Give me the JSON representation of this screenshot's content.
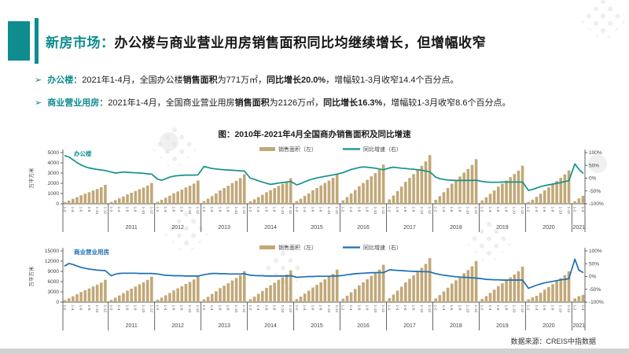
{
  "colors": {
    "accent": "#0e8c8e",
    "bar": "#c1a878",
    "office_line": "#13918b",
    "commercial_line": "#1e6fb5",
    "axis": "#555555",
    "tick_text": "#404040"
  },
  "header": {
    "title_prefix": "新房市场：",
    "title_main": "办公楼与商业营业用房销售面积同比均继续增长，但增幅收窄"
  },
  "bullets": [
    {
      "arrow": "➢",
      "segments": [
        {
          "t": "办公楼：",
          "b": true,
          "accent": true
        },
        {
          "t": "2021年1-4月，全国办公楼",
          "b": false
        },
        {
          "t": "销售面积",
          "b": true
        },
        {
          "t": "为771万㎡，",
          "b": false
        },
        {
          "t": "同比增长20.0%",
          "b": true
        },
        {
          "t": "，增幅较1-3月收窄14.4个百分点。",
          "b": false
        }
      ]
    },
    {
      "arrow": "➢",
      "segments": [
        {
          "t": "商业营业用房：",
          "b": true,
          "accent": true
        },
        {
          "t": "2021年1-4月，全国商业营业用房",
          "b": false
        },
        {
          "t": "销售面积",
          "b": true
        },
        {
          "t": "为2126万㎡，",
          "b": false
        },
        {
          "t": "同比增长16.3%",
          "b": true
        },
        {
          "t": "，增幅较1-3月收窄8.6个百分点。",
          "b": false
        }
      ]
    }
  ],
  "figure_title": "图：2010年-2021年4月全国商办销售面积及同比增速",
  "source": "数据来源：CREIS中指数据",
  "chart_data": [
    {
      "type": "bar+line",
      "name": "办公楼",
      "name_color": "#13918b",
      "line_color": "#13918b",
      "ylabel": "万平方米",
      "legend": [
        "销售面积（左）",
        "同比增速（右）"
      ],
      "legend_position": "top-center",
      "grid": false,
      "left_max": 5000,
      "left_ticks": [
        0,
        1000,
        2000,
        3000,
        4000,
        5000
      ],
      "right_min": -100,
      "right_max": 100,
      "right_ticks": [
        {
          "v": 100,
          "label": "100%"
        },
        {
          "v": 50,
          "label": "50%"
        },
        {
          "v": 0,
          "label": "0%"
        },
        {
          "v": -50,
          "label": "-50%"
        },
        {
          "v": -100,
          "label": "-100%"
        }
      ],
      "x_tick_template": [
        "1-2",
        "1-4",
        "1-6",
        "1-8",
        "1-10",
        "1-12"
      ],
      "years": [
        {
          "label": "",
          "bars": [
            170,
            310,
            480,
            650,
            830,
            980,
            1130,
            1300,
            1440,
            1610,
            1850
          ],
          "yoy": [
            88,
            83,
            72,
            61,
            52,
            45,
            40,
            37,
            34,
            32,
            30
          ]
        },
        {
          "label": "2011",
          "bars": [
            180,
            350,
            530,
            710,
            910,
            1080,
            1240,
            1420,
            1580,
            1770,
            2030
          ],
          "yoy": [
            24,
            20,
            22,
            24,
            23,
            22,
            21,
            20,
            19,
            17,
            16
          ]
        },
        {
          "label": "2012",
          "bars": [
            200,
            390,
            590,
            790,
            1020,
            1200,
            1380,
            1590,
            1770,
            1970,
            2270
          ],
          "yoy": [
            -4,
            -8,
            -2,
            4,
            8,
            10,
            11,
            12,
            12,
            12,
            13
          ]
        },
        {
          "label": "2013",
          "bars": [
            260,
            490,
            750,
            1010,
            1300,
            1530,
            1760,
            2020,
            2250,
            2510,
            2880
          ],
          "yoy": [
            46,
            42,
            38,
            36,
            34,
            33,
            32,
            31,
            30,
            29,
            28
          ]
        },
        {
          "label": "2014",
          "bars": [
            230,
            430,
            650,
            880,
            1130,
            1330,
            1530,
            1750,
            1950,
            2180,
            2500
          ],
          "yoy": [
            0,
            -5,
            -10,
            -15,
            -20,
            -24,
            -22,
            -19,
            -17,
            -15,
            -13
          ]
        },
        {
          "label": "2015",
          "bars": [
            260,
            490,
            760,
            1020,
            1310,
            1540,
            1780,
            2040,
            2270,
            2530,
            2910
          ],
          "yoy": [
            -26,
            -21,
            -14,
            -8,
            -3,
            1,
            4,
            7,
            10,
            13,
            16
          ]
        },
        {
          "label": "2016",
          "bars": [
            340,
            650,
            1000,
            1340,
            1720,
            2030,
            2340,
            2680,
            2990,
            3330,
            3830
          ],
          "yoy": [
            22,
            28,
            34,
            38,
            42,
            44,
            43,
            41,
            39,
            36,
            33
          ]
        },
        {
          "label": "2017",
          "bars": [
            430,
            810,
            1240,
            1670,
            2140,
            2520,
            2900,
            3330,
            3710,
            4140,
            4760
          ],
          "yoy": [
            40,
            43,
            41,
            39,
            38,
            36,
            35,
            33,
            31,
            28,
            25
          ]
        },
        {
          "label": "2018",
          "bars": [
            390,
            740,
            1130,
            1530,
            1960,
            2310,
            2660,
            3050,
            3400,
            3790,
            4360
          ],
          "yoy": [
            4,
            -2,
            -5,
            -7,
            -8,
            -9,
            -9,
            -9,
            -9,
            -9,
            -8
          ]
        },
        {
          "label": "2019",
          "bars": [
            330,
            630,
            970,
            1300,
            1670,
            1970,
            2270,
            2600,
            2900,
            3240,
            3720
          ],
          "yoy": [
            -13,
            -15,
            -16,
            -16,
            -16,
            -15,
            -15,
            -15,
            -15,
            -15,
            -15
          ]
        },
        {
          "label": "2020",
          "bars": [
            180,
            400,
            680,
            980,
            1310,
            1600,
            1900,
            2230,
            2540,
            2870,
            3260
          ],
          "yoy": [
            -48,
            -44,
            -38,
            -33,
            -29,
            -26,
            -23,
            -20,
            -17,
            -13,
            -10
          ]
        },
        {
          "label": "2021",
          "bars": [
            250,
            520,
            771
          ],
          "yoy": [
            56,
            34.4,
            20
          ]
        }
      ]
    },
    {
      "type": "bar+line",
      "name": "商业营业用房",
      "name_color": "#1e6fb5",
      "line_color": "#1e6fb5",
      "ylabel": "万平方米",
      "legend": [
        "销售面积（左）",
        "同比增速（右）"
      ],
      "legend_position": "top-center",
      "grid": false,
      "left_max": 15000,
      "left_ticks": [
        0,
        3000,
        6000,
        9000,
        12000,
        15000
      ],
      "right_min": -100,
      "right_max": 100,
      "right_ticks": [
        {
          "v": 100,
          "label": "100%"
        },
        {
          "v": 50,
          "label": "50%"
        },
        {
          "v": 0,
          "label": "0%"
        },
        {
          "v": -50,
          "label": "-50%"
        },
        {
          "v": -100,
          "label": "-100%"
        }
      ],
      "x_tick_template": [
        "1-2",
        "1-4",
        "1-6",
        "1-8",
        "1-10",
        "1-12"
      ],
      "years": [
        {
          "label": "",
          "bars": [
            590,
            1110,
            1700,
            2290,
            2950,
            3470,
            4000,
            4590,
            5110,
            5700,
            6550
          ],
          "yoy": [
            42,
            51,
            47,
            41,
            36,
            32,
            29,
            27,
            25,
            24,
            23
          ]
        },
        {
          "label": "2011",
          "bars": [
            670,
            1270,
            1940,
            2610,
            3350,
            3950,
            4540,
            5220,
            5810,
            6480,
            7450
          ],
          "yoy": [
            3,
            9,
            12,
            13,
            13,
            13,
            13,
            12,
            12,
            12,
            12
          ]
        },
        {
          "label": "2012",
          "bars": [
            680,
            1290,
            1980,
            2660,
            3420,
            4030,
            4640,
            5320,
            5930,
            6610,
            7600
          ],
          "yoy": [
            10,
            7,
            5,
            4,
            3,
            3,
            3,
            2,
            2,
            2,
            2
          ]
        },
        {
          "label": "2013",
          "bars": [
            820,
            1540,
            2360,
            3170,
            4080,
            4810,
            5530,
            6350,
            7070,
            7890,
            9070
          ],
          "yoy": [
            7,
            10,
            12,
            12,
            11,
            11,
            10,
            10,
            10,
            10,
            11
          ]
        },
        {
          "label": "2014",
          "bars": [
            840,
            1580,
            2420,
            3260,
            4190,
            4930,
            5670,
            6510,
            7250,
            8090,
            9300
          ],
          "yoy": [
            5,
            4,
            3,
            3,
            2,
            2,
            2,
            2,
            2,
            2,
            3
          ]
        },
        {
          "label": "2015",
          "bars": [
            860,
            1620,
            2480,
            3330,
            4280,
            5050,
            5810,
            6660,
            7430,
            8280,
            9520
          ],
          "yoy": [
            -3,
            -2,
            -1,
            0,
            0,
            1,
            1,
            1,
            1,
            2,
            2
          ]
        },
        {
          "label": "2016",
          "bars": [
            990,
            1860,
            2850,
            3840,
            4930,
            5810,
            6690,
            7670,
            8550,
            9540,
            10960
          ],
          "yoy": [
            4,
            7,
            9,
            11,
            12,
            13,
            14,
            15,
            15,
            16,
            15
          ]
        },
        {
          "label": "2017",
          "bars": [
            1160,
            2190,
            3350,
            4510,
            5800,
            6830,
            7860,
            9020,
            10050,
            11210,
            12880
          ],
          "yoy": [
            26,
            25,
            24,
            23,
            22,
            21,
            20,
            20,
            19,
            19,
            18
          ]
        },
        {
          "label": "2018",
          "bars": [
            1080,
            2050,
            3130,
            4220,
            5420,
            6390,
            7350,
            8440,
            9400,
            10480,
            12050
          ],
          "yoy": [
            11,
            8,
            5,
            3,
            1,
            -1,
            -2,
            -3,
            -4,
            -5,
            -6
          ]
        },
        {
          "label": "2019",
          "bars": [
            940,
            1770,
            2700,
            3640,
            4680,
            5510,
            6340,
            7280,
            8110,
            9050,
            10400
          ],
          "yoy": [
            -9,
            -11,
            -12,
            -13,
            -13,
            -14,
            -14,
            -14,
            -14,
            -14,
            -14
          ]
        },
        {
          "label": "2020",
          "bars": [
            820,
            1400,
            1830,
            2710,
            3620,
            4430,
            5250,
            6150,
            7000,
            7920,
            9040
          ],
          "yoy": [
            -46,
            -40,
            -34,
            -29,
            -25,
            -22,
            -19,
            -16,
            -13,
            -11,
            -9
          ]
        },
        {
          "label": "2021",
          "bars": [
            1050,
            1720,
            2126
          ],
          "yoy": [
            68,
            24.9,
            16.3
          ]
        }
      ]
    }
  ]
}
